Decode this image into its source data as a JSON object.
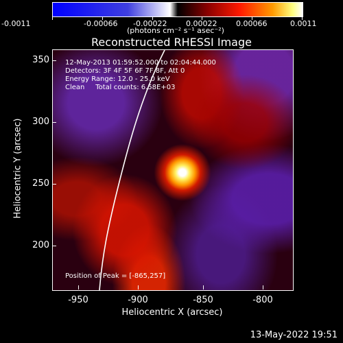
{
  "colorbar": {
    "ticks": [
      "-0.0011",
      "-0.00066",
      "-0.00022",
      "0.00022",
      "0.00066",
      "0.0011"
    ],
    "unit": "(photons cm⁻² s⁻¹ asec⁻²)"
  },
  "image": {
    "title": "Reconstructed RHESSI Image",
    "info_line1": "12-May-2013 01:59:52.000 to 02:04:44.000",
    "info_line2": "Detectors: 3F 4F 5F 6F 7F 8F, Att 0",
    "info_line3": "Energy Range: 12.0 - 25.0 keV",
    "info_line4": "Clean     Total counts: 6.58E+03",
    "peak_label": "Position of Peak = [-865,257]"
  },
  "axes": {
    "y_title": "Heliocentric Y (arcsec)",
    "x_title": "Heliocentric X (arcsec)",
    "y_ticks": [
      "350",
      "300",
      "250",
      "200"
    ],
    "x_ticks": [
      "-950",
      "-900",
      "-850",
      "-800"
    ]
  },
  "footer": {
    "timestamp": "13-May-2022 19:51"
  }
}
